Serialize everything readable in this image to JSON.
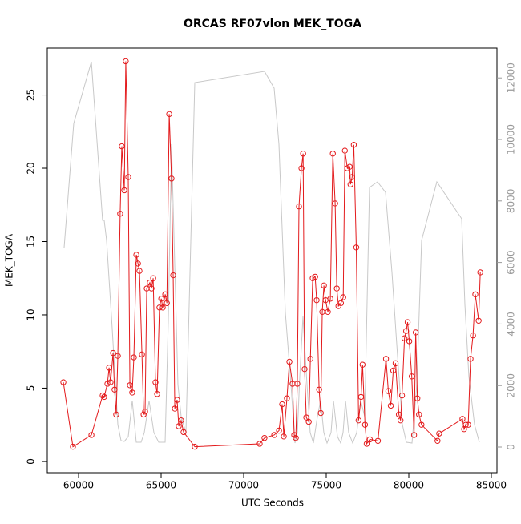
{
  "chart_data": {
    "type": "line",
    "title": "ORCAS RF07vlon MEK_TOGA",
    "xlabel": "UTC Seconds",
    "ylabel": "MEK_TOGA",
    "xlim": [
      58107,
      85340
    ],
    "ylim": [
      -0.77,
      28.2
    ],
    "y2lim": [
      -833,
      12969
    ],
    "xticks": [
      60000,
      65000,
      70000,
      75000,
      80000,
      85000
    ],
    "yticks": [
      0,
      5,
      10,
      15,
      20,
      25
    ],
    "y2ticks": [
      0,
      2000,
      4000,
      6000,
      8000,
      10000,
      12000
    ],
    "series": [
      {
        "color": "#c8c8c8",
        "axis": "y2",
        "markers": false,
        "x": [
          59126,
          59709,
          60777,
          61456,
          61553,
          61699,
          62039,
          62379,
          62573,
          62767,
          63010,
          63253,
          63495,
          63787,
          63981,
          64272,
          64563,
          64855,
          65243,
          65437,
          65631,
          65825,
          66019,
          66214,
          66505,
          67039,
          71262,
          71845,
          72136,
          72524,
          72864,
          73107,
          73253,
          73398,
          73592,
          73835,
          74029,
          74223,
          74466,
          74660,
          74854,
          75049,
          75291,
          75437,
          75680,
          75874,
          76019,
          76165,
          76359,
          76602,
          76845,
          77088,
          77330,
          77621,
          78107,
          78592,
          78981,
          79272,
          79612,
          79854,
          80194,
          80485,
          80777,
          81699,
          83204,
          83398,
          83641,
          83981,
          84272
        ],
        "values": [
          6484,
          10521,
          12526,
          7370,
          7370,
          6719,
          3854,
          729,
          208,
          182,
          339,
          1510,
          156,
          156,
          469,
          1510,
          469,
          156,
          156,
          4115,
          9844,
          5938,
          2031,
          990,
          469,
          11849,
          12214,
          11667,
          9844,
          4375,
          2031,
          130,
          469,
          2292,
          4245,
          2031,
          469,
          130,
          990,
          1510,
          469,
          130,
          469,
          1510,
          339,
          130,
          469,
          1510,
          469,
          130,
          469,
          1510,
          990,
          8438,
          8620,
          8281,
          5677,
          3333,
          729,
          156,
          130,
          2031,
          6719,
          8620,
          7422,
          4635,
          2292,
          729,
          156
        ]
      },
      {
        "color": "#e31a1c",
        "markers": true,
        "x": [
          59080,
          59660,
          60780,
          61460,
          61550,
          61750,
          61850,
          61940,
          62090,
          62180,
          62280,
          62380,
          62520,
          62620,
          62770,
          62860,
          63010,
          63110,
          63250,
          63350,
          63500,
          63600,
          63690,
          63840,
          63940,
          64030,
          64130,
          64320,
          64420,
          64520,
          64660,
          64760,
          64900,
          65010,
          65100,
          65250,
          65350,
          65490,
          65630,
          65730,
          65830,
          65970,
          66070,
          66210,
          66360,
          67040,
          70970,
          71260,
          71850,
          72140,
          72330,
          72430,
          72620,
          72770,
          72960,
          73060,
          73160,
          73250,
          73350,
          73500,
          73600,
          73690,
          73790,
          73940,
          74040,
          74180,
          74330,
          74420,
          74570,
          74670,
          74760,
          74860,
          74960,
          75100,
          75250,
          75400,
          75540,
          75640,
          75740,
          75890,
          76030,
          76130,
          76280,
          76420,
          76470,
          76570,
          76670,
          76820,
          76960,
          77110,
          77200,
          77350,
          77450,
          77640,
          78130,
          78620,
          78760,
          78910,
          79060,
          79200,
          79400,
          79500,
          79590,
          79740,
          79840,
          79930,
          80030,
          80180,
          80320,
          80420,
          80520,
          80620,
          80770,
          81740,
          81840,
          83250,
          83350,
          83450,
          83600,
          83740,
          83890,
          84030,
          84230,
          84330
        ],
        "values": [
          5.4,
          1.0,
          1.8,
          4.5,
          4.4,
          5.3,
          6.4,
          5.4,
          7.4,
          4.9,
          3.2,
          7.2,
          16.9,
          21.5,
          18.5,
          27.3,
          19.4,
          5.2,
          4.7,
          7.1,
          14.1,
          13.5,
          13.0,
          7.3,
          3.2,
          3.4,
          11.8,
          12.2,
          11.8,
          12.5,
          5.4,
          4.6,
          10.5,
          11.1,
          10.5,
          11.4,
          10.8,
          23.7,
          19.3,
          12.7,
          3.6,
          4.2,
          2.4,
          2.8,
          2.0,
          1.0,
          1.2,
          1.6,
          1.8,
          2.1,
          3.9,
          1.7,
          4.3,
          6.8,
          5.3,
          1.8,
          1.6,
          5.3,
          17.4,
          20.0,
          21.0,
          6.3,
          3.0,
          2.7,
          7.0,
          12.5,
          12.6,
          11.0,
          4.9,
          3.3,
          10.2,
          12.0,
          11.0,
          10.2,
          11.1,
          21.0,
          17.6,
          11.8,
          10.6,
          10.8,
          11.2,
          21.2,
          20.0,
          20.1,
          18.9,
          19.4,
          21.6,
          14.6,
          2.8,
          4.4,
          6.6,
          2.5,
          1.2,
          1.5,
          1.4,
          7.0,
          4.8,
          3.8,
          6.2,
          6.7,
          3.2,
          2.8,
          4.5,
          8.4,
          8.9,
          9.5,
          8.2,
          5.8,
          1.8,
          8.8,
          4.3,
          3.2,
          2.5,
          1.4,
          1.9,
          2.9,
          2.2,
          2.5,
          2.5,
          7.0,
          8.6,
          11.4,
          9.6,
          12.9
        ]
      }
    ]
  }
}
